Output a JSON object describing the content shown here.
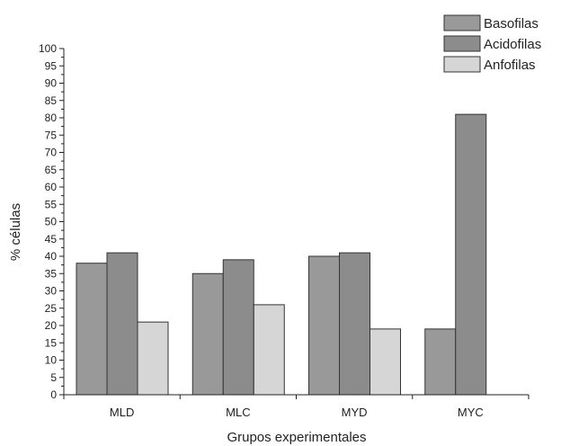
{
  "chart_data": {
    "type": "bar",
    "title": "",
    "xlabel": "Grupos experimentales",
    "ylabel": "% células",
    "ylim": [
      0,
      100
    ],
    "yticks": [
      0,
      5,
      10,
      15,
      20,
      25,
      30,
      35,
      40,
      45,
      50,
      55,
      60,
      65,
      70,
      75,
      80,
      85,
      90,
      95,
      100
    ],
    "grid": false,
    "legend_position": "top-right",
    "categories": [
      "MLD",
      "MLC",
      "MYD",
      "MYC"
    ],
    "series": [
      {
        "name": "Basofilas",
        "color": "#999999",
        "values": [
          38,
          35,
          40,
          19
        ]
      },
      {
        "name": "Acidofilas",
        "color": "#8c8c8c",
        "values": [
          41,
          39,
          41,
          81
        ]
      },
      {
        "name": "Anfofilas",
        "color": "#d6d6d6",
        "values": [
          21,
          26,
          19,
          null
        ]
      }
    ]
  }
}
